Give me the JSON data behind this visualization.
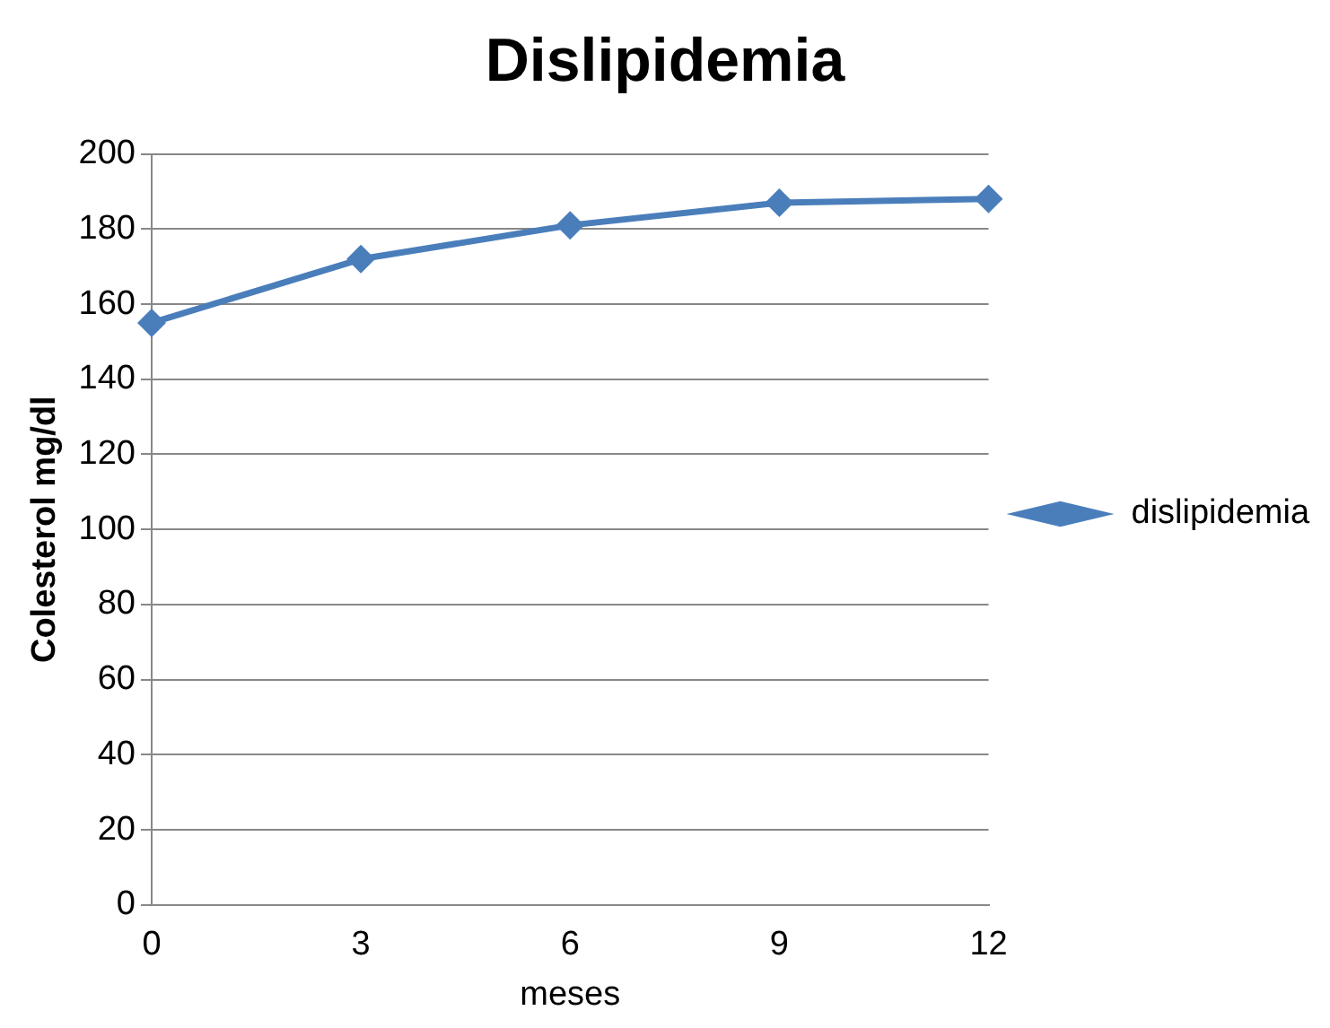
{
  "chart_data": {
    "type": "line",
    "title": "Dislipidemia",
    "xlabel": "meses",
    "ylabel": "Colesterol mg/dl",
    "categories": [
      "0",
      "3",
      "6",
      "9",
      "12"
    ],
    "series": [
      {
        "name": "dislipidemia",
        "color": "#4a7ebb",
        "values": [
          155,
          172,
          181,
          187,
          188
        ]
      }
    ],
    "ylim": [
      0,
      200
    ],
    "yticks": [
      0,
      20,
      40,
      60,
      80,
      100,
      120,
      140,
      160,
      180,
      200
    ],
    "grid": "y",
    "legend": "right",
    "marker": "diamond",
    "line_style": "solid"
  }
}
